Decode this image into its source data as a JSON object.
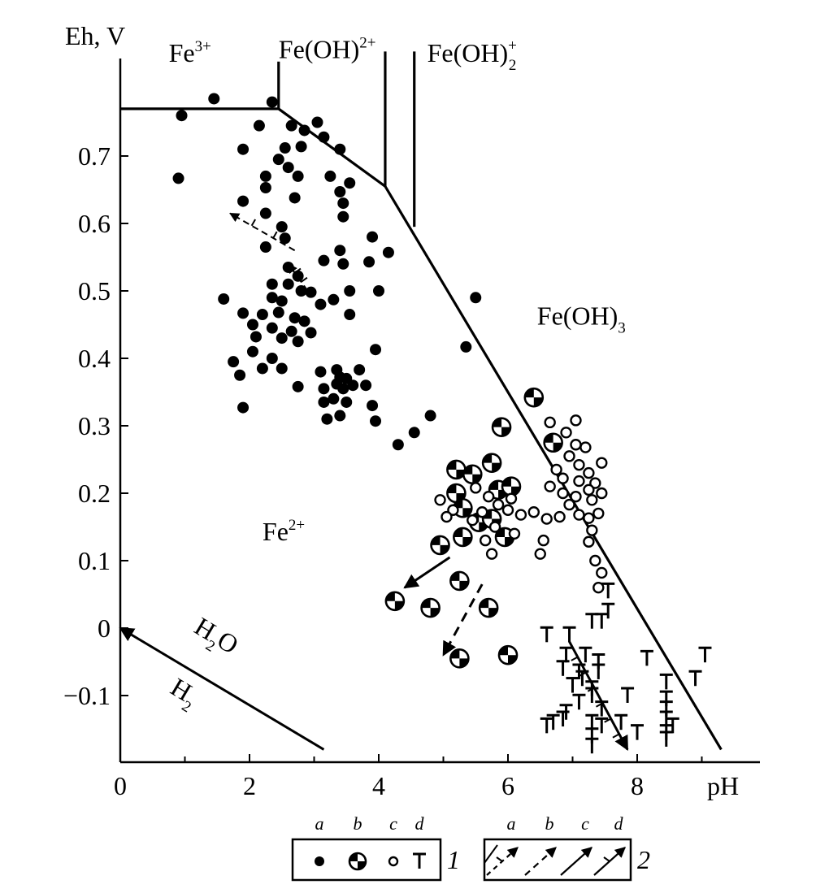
{
  "chart_data": {
    "type": "scatter",
    "title": "",
    "xlabel": "pH",
    "ylabel": "Eh, V",
    "xlim": [
      0,
      9.8
    ],
    "ylim": [
      -0.2,
      0.85
    ],
    "x_ticks": [
      {
        "value": 0,
        "label": "0"
      },
      {
        "value": 2,
        "label": "2"
      },
      {
        "value": 4,
        "label": "4"
      },
      {
        "value": 6,
        "label": "6"
      },
      {
        "value": 8,
        "label": "8"
      }
    ],
    "y_ticks": [
      {
        "value": 0.7,
        "label": "0.7"
      },
      {
        "value": 0.6,
        "label": "0.6"
      },
      {
        "value": 0.5,
        "label": "0.5"
      },
      {
        "value": 0.4,
        "label": "0.4"
      },
      {
        "value": 0.3,
        "label": "0.3"
      },
      {
        "value": 0.2,
        "label": "0.2"
      },
      {
        "value": 0.1,
        "label": "0.1"
      },
      {
        "value": 0,
        "label": "0"
      },
      {
        "value": -0.1,
        "label": "−0.1"
      }
    ],
    "species_labels": [
      {
        "base": "Fe",
        "sup": "3+",
        "sub": "",
        "x": 0.75,
        "y": 0.84
      },
      {
        "base": "Fe(OH)",
        "sup": "2+",
        "sub": "",
        "x": 2.45,
        "y": 0.845
      },
      {
        "base": "Fe(OH)",
        "sup": "+",
        "sub": "2",
        "x": 4.75,
        "y": 0.84
      },
      {
        "base": "Fe(OH)",
        "sup": "",
        "sub": "3",
        "x": 6.45,
        "y": 0.45
      },
      {
        "base": "Fe",
        "sup": "2+",
        "sub": "",
        "x": 2.2,
        "y": 0.13
      }
    ],
    "water_labels": {
      "h2o_base": "H",
      "h2o_sub": "2",
      "h2o_tail": "O",
      "h2_base": "H",
      "h2_sub": "2"
    },
    "boundaries": [
      {
        "name": "fe3-fe2",
        "points": [
          [
            0,
            0.77
          ],
          [
            2.45,
            0.77
          ],
          [
            4.1,
            0.655
          ],
          [
            9.3,
            -0.18
          ]
        ]
      },
      {
        "name": "fe3-feoh2",
        "points": [
          [
            2.45,
            0.77
          ],
          [
            2.45,
            0.84
          ]
        ]
      },
      {
        "name": "feoh2-feoh2plus",
        "points": [
          [
            4.1,
            0.655
          ],
          [
            4.1,
            0.855
          ]
        ]
      },
      {
        "name": "feoh2plus-feoh3",
        "points": [
          [
            4.55,
            0.595
          ],
          [
            4.55,
            0.855
          ]
        ]
      },
      {
        "name": "water-stability",
        "points": [
          [
            3.15,
            -0.18
          ],
          [
            0,
            0
          ]
        ]
      }
    ],
    "series": [
      {
        "legend_letter": "a",
        "marker": "filled-circle",
        "points": [
          [
            0.95,
            0.76
          ],
          [
            1.45,
            0.785
          ],
          [
            0.9,
            0.667
          ],
          [
            2.35,
            0.78
          ],
          [
            2.15,
            0.745
          ],
          [
            1.9,
            0.71
          ],
          [
            2.25,
            0.67
          ],
          [
            2.25,
            0.653
          ],
          [
            2.45,
            0.695
          ],
          [
            2.65,
            0.745
          ],
          [
            2.85,
            0.738
          ],
          [
            3.05,
            0.75
          ],
          [
            2.55,
            0.712
          ],
          [
            2.8,
            0.714
          ],
          [
            2.6,
            0.683
          ],
          [
            2.75,
            0.67
          ],
          [
            3.15,
            0.728
          ],
          [
            3.4,
            0.71
          ],
          [
            3.25,
            0.67
          ],
          [
            3.4,
            0.647
          ],
          [
            3.55,
            0.66
          ],
          [
            3.45,
            0.63
          ],
          [
            1.9,
            0.633
          ],
          [
            2.7,
            0.638
          ],
          [
            2.25,
            0.615
          ],
          [
            3.45,
            0.61
          ],
          [
            2.5,
            0.595
          ],
          [
            2.55,
            0.578
          ],
          [
            2.25,
            0.565
          ],
          [
            3.9,
            0.58
          ],
          [
            3.85,
            0.543
          ],
          [
            4.15,
            0.557
          ],
          [
            3.4,
            0.56
          ],
          [
            3.15,
            0.545
          ],
          [
            3.45,
            0.54
          ],
          [
            2.35,
            0.51
          ],
          [
            2.6,
            0.535
          ],
          [
            2.75,
            0.522
          ],
          [
            2.6,
            0.51
          ],
          [
            2.35,
            0.49
          ],
          [
            2.5,
            0.485
          ],
          [
            2.8,
            0.5
          ],
          [
            2.95,
            0.498
          ],
          [
            3.1,
            0.48
          ],
          [
            3.3,
            0.487
          ],
          [
            3.55,
            0.5
          ],
          [
            4.0,
            0.5
          ],
          [
            1.6,
            0.488
          ],
          [
            1.9,
            0.467
          ],
          [
            2.2,
            0.465
          ],
          [
            2.45,
            0.468
          ],
          [
            2.7,
            0.46
          ],
          [
            2.85,
            0.455
          ],
          [
            2.05,
            0.45
          ],
          [
            2.35,
            0.445
          ],
          [
            2.65,
            0.44
          ],
          [
            2.95,
            0.438
          ],
          [
            3.55,
            0.465
          ],
          [
            2.1,
            0.432
          ],
          [
            2.5,
            0.43
          ],
          [
            2.75,
            0.425
          ],
          [
            2.05,
            0.41
          ],
          [
            2.35,
            0.4
          ],
          [
            1.75,
            0.395
          ],
          [
            3.95,
            0.413
          ],
          [
            1.85,
            0.375
          ],
          [
            2.2,
            0.385
          ],
          [
            2.5,
            0.385
          ],
          [
            2.75,
            0.358
          ],
          [
            3.1,
            0.38
          ],
          [
            3.35,
            0.383
          ],
          [
            3.5,
            0.37
          ],
          [
            3.7,
            0.383
          ],
          [
            3.35,
            0.362
          ],
          [
            3.4,
            0.372
          ],
          [
            3.15,
            0.355
          ],
          [
            3.45,
            0.355
          ],
          [
            3.6,
            0.36
          ],
          [
            3.8,
            0.36
          ],
          [
            3.15,
            0.335
          ],
          [
            3.3,
            0.34
          ],
          [
            3.5,
            0.335
          ],
          [
            3.9,
            0.33
          ],
          [
            1.9,
            0.327
          ],
          [
            3.2,
            0.31
          ],
          [
            3.4,
            0.315
          ],
          [
            3.95,
            0.307
          ],
          [
            4.8,
            0.315
          ],
          [
            4.55,
            0.29
          ],
          [
            4.3,
            0.272
          ],
          [
            5.35,
            0.417
          ],
          [
            5.5,
            0.49
          ]
        ]
      },
      {
        "legend_letter": "b",
        "marker": "quartered-circle",
        "points": [
          [
            6.4,
            0.342
          ],
          [
            5.9,
            0.298
          ],
          [
            6.7,
            0.275
          ],
          [
            5.2,
            0.235
          ],
          [
            5.45,
            0.228
          ],
          [
            5.75,
            0.245
          ],
          [
            5.85,
            0.205
          ],
          [
            6.05,
            0.21
          ],
          [
            5.2,
            0.2
          ],
          [
            5.3,
            0.178
          ],
          [
            5.55,
            0.157
          ],
          [
            5.75,
            0.162
          ],
          [
            5.95,
            0.135
          ],
          [
            5.3,
            0.135
          ],
          [
            4.95,
            0.123
          ],
          [
            5.25,
            0.07
          ],
          [
            4.25,
            0.04
          ],
          [
            4.8,
            0.03
          ],
          [
            5.7,
            0.03
          ],
          [
            5.25,
            -0.045
          ],
          [
            6.0,
            -0.04
          ]
        ]
      },
      {
        "legend_letter": "c",
        "marker": "open-circle",
        "points": [
          [
            6.65,
            0.305
          ],
          [
            7.05,
            0.308
          ],
          [
            6.9,
            0.29
          ],
          [
            7.05,
            0.272
          ],
          [
            7.2,
            0.268
          ],
          [
            6.95,
            0.255
          ],
          [
            7.1,
            0.242
          ],
          [
            7.45,
            0.245
          ],
          [
            6.75,
            0.235
          ],
          [
            7.25,
            0.23
          ],
          [
            7.35,
            0.215
          ],
          [
            6.85,
            0.222
          ],
          [
            7.1,
            0.218
          ],
          [
            7.25,
            0.205
          ],
          [
            6.65,
            0.21
          ],
          [
            7.45,
            0.2
          ],
          [
            6.85,
            0.2
          ],
          [
            7.05,
            0.195
          ],
          [
            7.3,
            0.19
          ],
          [
            6.95,
            0.183
          ],
          [
            7.4,
            0.17
          ],
          [
            7.1,
            0.168
          ],
          [
            6.8,
            0.165
          ],
          [
            6.6,
            0.162
          ],
          [
            7.25,
            0.163
          ],
          [
            6.4,
            0.172
          ],
          [
            6.2,
            0.168
          ],
          [
            4.95,
            0.19
          ],
          [
            5.15,
            0.175
          ],
          [
            5.05,
            0.165
          ],
          [
            5.5,
            0.208
          ],
          [
            5.7,
            0.195
          ],
          [
            5.85,
            0.183
          ],
          [
            5.6,
            0.172
          ],
          [
            6.05,
            0.192
          ],
          [
            6.0,
            0.175
          ],
          [
            5.45,
            0.16
          ],
          [
            5.8,
            0.15
          ],
          [
            5.65,
            0.13
          ],
          [
            6.1,
            0.14
          ],
          [
            5.75,
            0.11
          ],
          [
            6.55,
            0.13
          ],
          [
            6.5,
            0.11
          ],
          [
            7.3,
            0.145
          ],
          [
            7.25,
            0.128
          ],
          [
            7.35,
            0.1
          ],
          [
            7.45,
            0.082
          ],
          [
            7.4,
            0.06
          ]
        ]
      },
      {
        "legend_letter": "d",
        "marker": "tee",
        "points": [
          [
            7.55,
            0.055
          ],
          [
            7.55,
            0.025
          ],
          [
            7.3,
            0.01
          ],
          [
            7.45,
            0.01
          ],
          [
            6.6,
            -0.01
          ],
          [
            6.95,
            -0.01
          ],
          [
            6.9,
            -0.04
          ],
          [
            7.2,
            -0.04
          ],
          [
            6.85,
            -0.06
          ],
          [
            7.1,
            -0.065
          ],
          [
            7.15,
            -0.075
          ],
          [
            7.4,
            -0.05
          ],
          [
            7.4,
            -0.065
          ],
          [
            7.0,
            -0.085
          ],
          [
            7.3,
            -0.09
          ],
          [
            7.3,
            -0.1
          ],
          [
            7.1,
            -0.11
          ],
          [
            7.45,
            -0.12
          ],
          [
            6.9,
            -0.125
          ],
          [
            6.85,
            -0.135
          ],
          [
            6.7,
            -0.14
          ],
          [
            6.6,
            -0.145
          ],
          [
            7.3,
            -0.14
          ],
          [
            7.45,
            -0.145
          ],
          [
            7.75,
            -0.14
          ],
          [
            8.0,
            -0.155
          ],
          [
            7.3,
            -0.16
          ],
          [
            7.3,
            -0.175
          ],
          [
            7.85,
            -0.1
          ],
          [
            8.15,
            -0.045
          ],
          [
            8.45,
            -0.08
          ],
          [
            8.45,
            -0.105
          ],
          [
            8.45,
            -0.12
          ],
          [
            8.45,
            -0.135
          ],
          [
            8.55,
            -0.145
          ],
          [
            8.45,
            -0.155
          ],
          [
            8.45,
            -0.165
          ],
          [
            8.9,
            -0.075
          ],
          [
            9.05,
            -0.04
          ]
        ]
      }
    ],
    "arrows": [
      {
        "name": "trend-a-short",
        "style": "dash-tick",
        "from": [
          2.7,
          0.56
        ],
        "to": [
          1.7,
          0.615
        ]
      },
      {
        "name": "trend-a-cross",
        "style": "dash-tick",
        "from": [
          2.9,
          0.5
        ],
        "to": [
          2.6,
          0.54
        ]
      },
      {
        "name": "trend-b",
        "style": "solid",
        "from": [
          5.1,
          0.105
        ],
        "to": [
          4.4,
          0.06
        ]
      },
      {
        "name": "trend-c",
        "style": "dashed",
        "from": [
          5.6,
          0.065
        ],
        "to": [
          5.0,
          -0.04
        ]
      },
      {
        "name": "trend-d",
        "style": "solid-tick",
        "from": [
          6.95,
          -0.02
        ],
        "to": [
          7.85,
          -0.18
        ]
      },
      {
        "name": "water-arrow",
        "style": "solid",
        "from": [
          3.15,
          -0.18
        ],
        "to": [
          0,
          0
        ]
      }
    ],
    "legend": {
      "placement": "bottom",
      "groups": [
        {
          "number": "1",
          "letters": [
            "a",
            "b",
            "c",
            "d"
          ],
          "items": [
            "filled-circle",
            "quartered-circle",
            "open-circle",
            "tee"
          ]
        },
        {
          "number": "2",
          "letters": [
            "a",
            "b",
            "c",
            "d"
          ],
          "items": [
            "dash-tick-arrow",
            "dashed-arrow",
            "solid-arrow",
            "solid-tick-arrow"
          ]
        }
      ]
    }
  }
}
